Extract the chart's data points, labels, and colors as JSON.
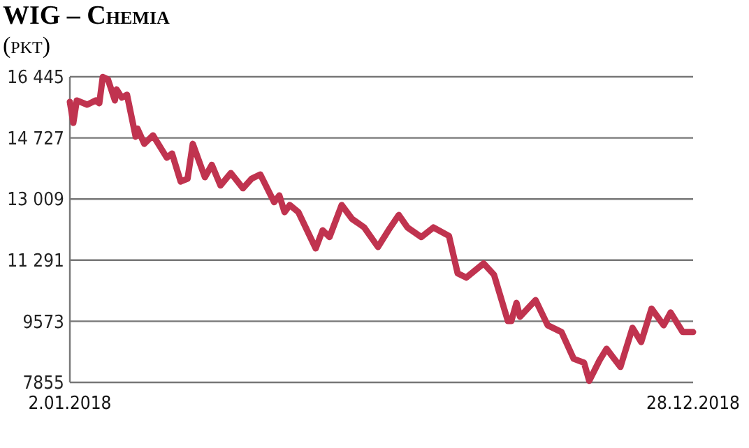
{
  "chart_data": {
    "type": "line",
    "title": "WIG – Chemia",
    "subtitle": "(pkt)",
    "x": [
      "2018-01-02",
      "2018-01-04",
      "2018-01-06",
      "2018-01-12",
      "2018-01-17",
      "2018-01-19",
      "2018-01-21",
      "2018-01-24",
      "2018-01-28",
      "2018-01-29",
      "2018-02-01",
      "2018-02-04",
      "2018-02-09",
      "2018-02-10",
      "2018-02-14",
      "2018-02-19",
      "2018-02-27",
      "2018-03-02",
      "2018-03-07",
      "2018-03-11",
      "2018-03-14",
      "2018-03-21",
      "2018-03-25",
      "2018-03-30",
      "2018-04-05",
      "2018-04-12",
      "2018-04-17",
      "2018-04-22",
      "2018-04-30",
      "2018-05-03",
      "2018-05-06",
      "2018-05-09",
      "2018-05-14",
      "2018-05-24",
      "2018-05-28",
      "2018-06-01",
      "2018-06-08",
      "2018-06-14",
      "2018-06-21",
      "2018-06-29",
      "2018-07-05",
      "2018-07-11",
      "2018-07-16",
      "2018-07-24",
      "2018-07-31",
      "2018-08-09",
      "2018-08-14",
      "2018-08-19",
      "2018-08-29",
      "2018-09-04",
      "2018-09-12",
      "2018-09-14",
      "2018-09-17",
      "2018-09-19",
      "2018-09-28",
      "2018-10-05",
      "2018-10-13",
      "2018-10-20",
      "2018-10-26",
      "2018-10-29",
      "2018-11-04",
      "2018-11-08",
      "2018-11-16",
      "2018-11-23",
      "2018-11-28",
      "2018-12-04",
      "2018-12-11",
      "2018-12-15",
      "2018-12-22",
      "2018-12-28"
    ],
    "series": [
      {
        "color": "#c0334f",
        "values": [
          15740,
          15150,
          15780,
          15660,
          15780,
          15700,
          16440,
          16370,
          15780,
          16090,
          15860,
          15940,
          14760,
          14990,
          14560,
          14800,
          14170,
          14290,
          13500,
          13580,
          14560,
          13620,
          13970,
          13390,
          13740,
          13310,
          13580,
          13700,
          12920,
          13110,
          12640,
          12840,
          12640,
          11620,
          12130,
          11940,
          12840,
          12450,
          12210,
          11660,
          12130,
          12560,
          12210,
          11940,
          12210,
          11970,
          10920,
          10800,
          11200,
          10880,
          9580,
          9580,
          10090,
          9700,
          10170,
          9460,
          9270,
          8520,
          8410,
          7900,
          8480,
          8800,
          8290,
          9390,
          8990,
          9930,
          9460,
          9820,
          9270,
          9270
        ]
      }
    ],
    "xlim": [
      "2018-01-02",
      "2018-12-28"
    ],
    "xticks": [
      {
        "value": "2018-01-02",
        "label": "2.01.2018"
      },
      {
        "value": "2018-12-28",
        "label": "28.12.2018"
      }
    ],
    "ylim": [
      7855,
      16445
    ],
    "yticks": [
      7855,
      9573,
      {
        "value": 11291,
        "label": "11 291"
      },
      {
        "value": 13009,
        "label": "13 009"
      },
      {
        "value": 14727,
        "label": "14 727"
      },
      {
        "value": 16445,
        "label": "16 445"
      }
    ],
    "grid": "y"
  }
}
